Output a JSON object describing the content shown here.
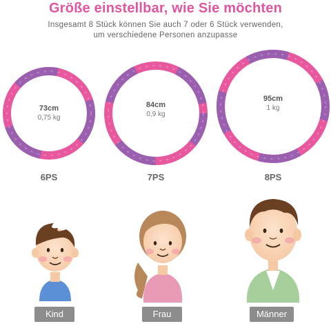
{
  "header": {
    "title": "Größe einstellbar, wie Sie möchten",
    "subtitle_line1": "Insgesamt 8 Stück können Sie auch 7 oder 6 Stück verwenden,",
    "subtitle_line2": "um verschiedene Personen anzupasse"
  },
  "hoops": [
    {
      "size": "73cm",
      "weight": "0,75 kg",
      "pieces": "6PS"
    },
    {
      "size": "84cm",
      "weight": "0,9 kg",
      "pieces": "7PS"
    },
    {
      "size": "95cm",
      "weight": "1 kg",
      "pieces": "8PS"
    }
  ],
  "people": [
    {
      "label": "Kind"
    },
    {
      "label": "Frau"
    },
    {
      "label": "Männer"
    }
  ],
  "colors": {
    "title": "#e0559f",
    "hoop_pink": "#e8589f",
    "hoop_purple": "#9b5fb0",
    "badge": "#8c8c8c"
  }
}
